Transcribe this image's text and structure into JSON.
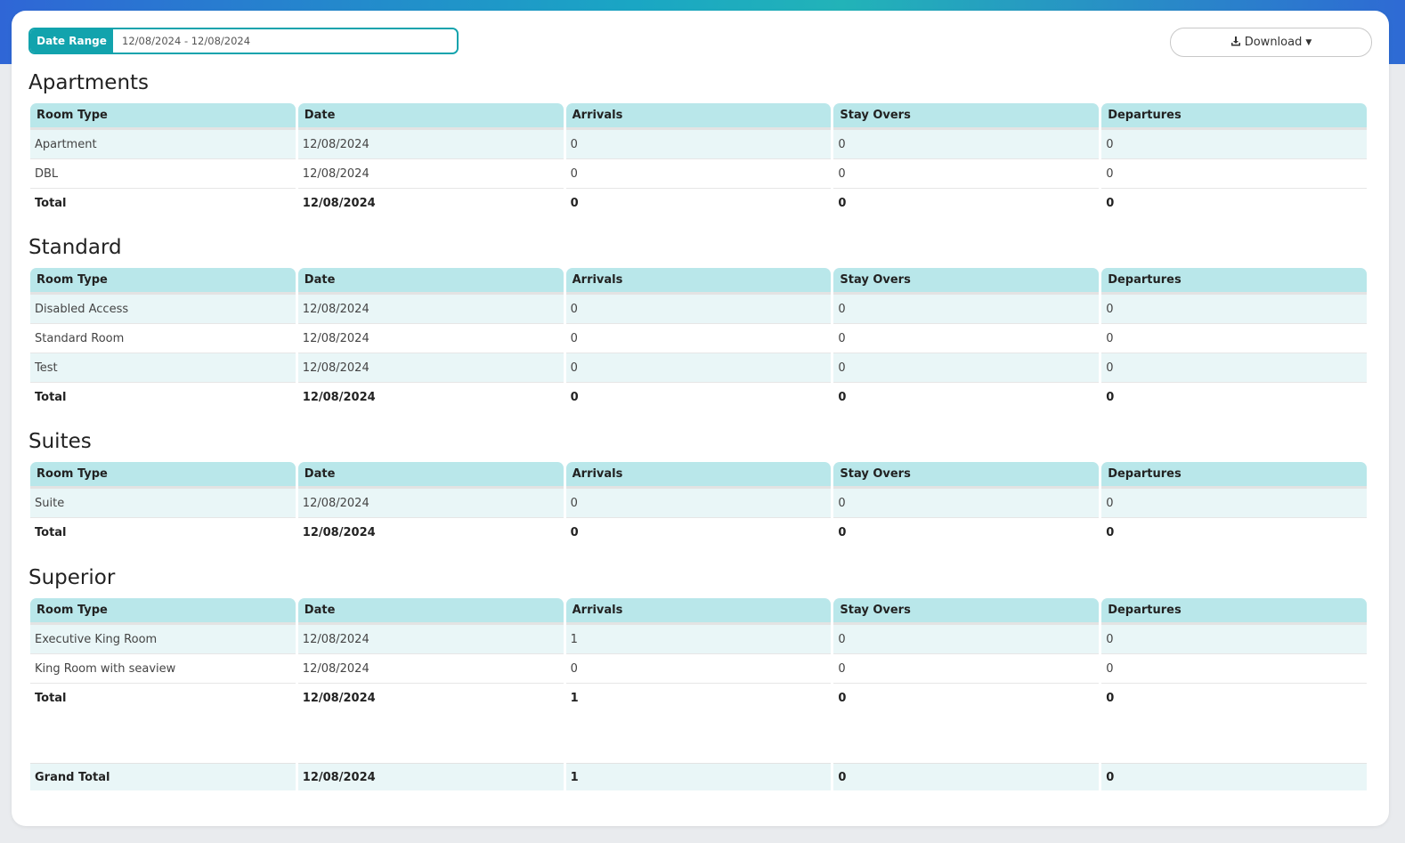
{
  "toolbar": {
    "date_range_label": "Date Range",
    "date_range_value": "12/08/2024 - 12/08/2024",
    "download_label": "Download"
  },
  "columns": [
    "Room Type",
    "Date",
    "Arrivals",
    "Stay Overs",
    "Departures"
  ],
  "sections": [
    {
      "title": "Apartments",
      "rows": [
        [
          "Apartment",
          "12/08/2024",
          "0",
          "0",
          "0"
        ],
        [
          "DBL",
          "12/08/2024",
          "0",
          "0",
          "0"
        ]
      ],
      "total": [
        "Total",
        "12/08/2024",
        "0",
        "0",
        "0"
      ]
    },
    {
      "title": "Standard",
      "rows": [
        [
          "Disabled Access",
          "12/08/2024",
          "0",
          "0",
          "0"
        ],
        [
          "Standard Room",
          "12/08/2024",
          "0",
          "0",
          "0"
        ],
        [
          "Test",
          "12/08/2024",
          "0",
          "0",
          "0"
        ]
      ],
      "total": [
        "Total",
        "12/08/2024",
        "0",
        "0",
        "0"
      ]
    },
    {
      "title": "Suites",
      "rows": [
        [
          "Suite",
          "12/08/2024",
          "0",
          "0",
          "0"
        ]
      ],
      "total": [
        "Total",
        "12/08/2024",
        "0",
        "0",
        "0"
      ]
    },
    {
      "title": "Superior",
      "rows": [
        [
          "Executive King Room",
          "12/08/2024",
          "1",
          "0",
          "0"
        ],
        [
          "King Room with seaview",
          "12/08/2024",
          "0",
          "0",
          "0"
        ]
      ],
      "total": [
        "Total",
        "12/08/2024",
        "1",
        "0",
        "0"
      ]
    }
  ],
  "grand_total": [
    "Grand Total",
    "12/08/2024",
    "1",
    "0",
    "0"
  ]
}
